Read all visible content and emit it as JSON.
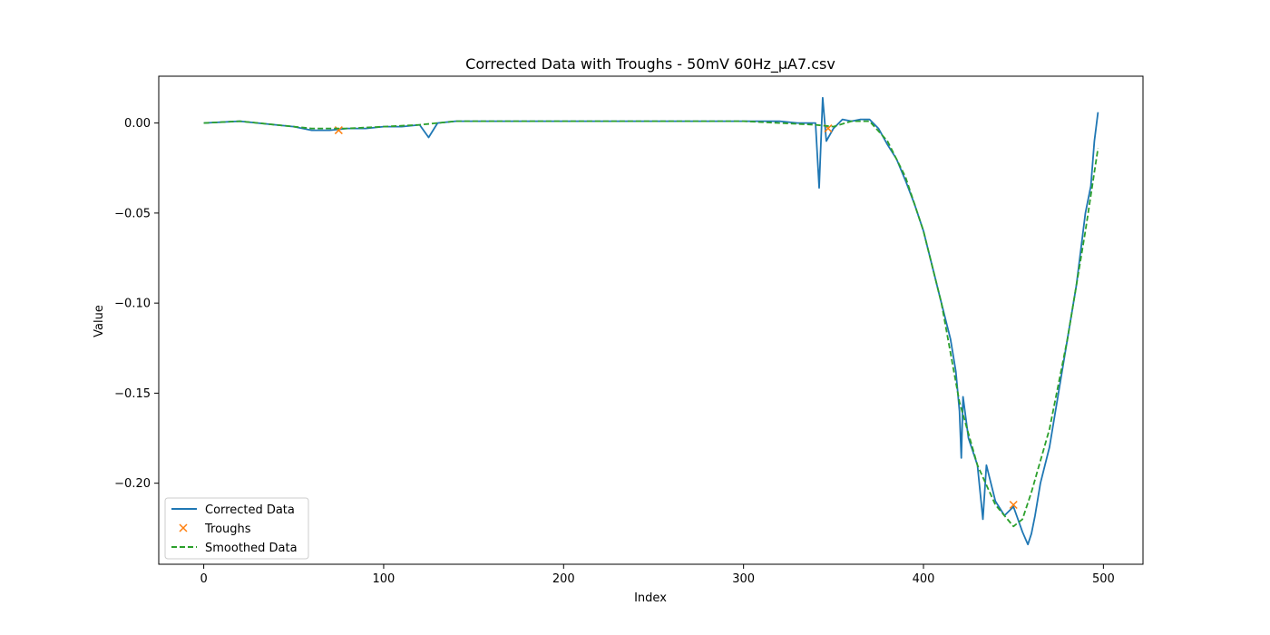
{
  "chart_data": {
    "type": "line",
    "title": "Corrected Data with Troughs - 50mV 60Hz_µA7.csv",
    "xlabel": "Index",
    "ylabel": "Value",
    "xlim": [
      -25,
      522
    ],
    "ylim": [
      -0.245,
      0.026
    ],
    "xticks": [
      0,
      100,
      200,
      300,
      400,
      500
    ],
    "yticks": [
      0.0,
      -0.05,
      -0.1,
      -0.15,
      -0.2
    ],
    "ytick_labels": [
      "0.00",
      "−0.05",
      "−0.10",
      "−0.15",
      "−0.20"
    ],
    "grid": false,
    "legend_position": "lower-left",
    "series": [
      {
        "name": "Corrected Data",
        "style": "solid",
        "color": "#1f77b4",
        "points": [
          [
            0,
            0.0
          ],
          [
            10,
            0.0005
          ],
          [
            20,
            0.001
          ],
          [
            30,
            0.0
          ],
          [
            40,
            -0.001
          ],
          [
            50,
            -0.002
          ],
          [
            60,
            -0.004
          ],
          [
            70,
            -0.004
          ],
          [
            80,
            -0.003
          ],
          [
            90,
            -0.003
          ],
          [
            100,
            -0.002
          ],
          [
            110,
            -0.002
          ],
          [
            120,
            -0.001
          ],
          [
            125,
            -0.008
          ],
          [
            130,
            0.0
          ],
          [
            140,
            0.001
          ],
          [
            150,
            0.001
          ],
          [
            160,
            0.001
          ],
          [
            170,
            0.001
          ],
          [
            180,
            0.001
          ],
          [
            190,
            0.001
          ],
          [
            200,
            0.001
          ],
          [
            210,
            0.001
          ],
          [
            220,
            0.001
          ],
          [
            230,
            0.001
          ],
          [
            240,
            0.001
          ],
          [
            250,
            0.001
          ],
          [
            260,
            0.001
          ],
          [
            270,
            0.001
          ],
          [
            280,
            0.001
          ],
          [
            290,
            0.001
          ],
          [
            300,
            0.001
          ],
          [
            310,
            0.001
          ],
          [
            320,
            0.001
          ],
          [
            330,
            0.0
          ],
          [
            340,
            0.0
          ],
          [
            342,
            -0.036
          ],
          [
            344,
            0.014
          ],
          [
            346,
            -0.01
          ],
          [
            350,
            -0.003
          ],
          [
            355,
            0.002
          ],
          [
            360,
            0.001
          ],
          [
            365,
            0.002
          ],
          [
            370,
            0.002
          ],
          [
            375,
            -0.003
          ],
          [
            380,
            -0.012
          ],
          [
            385,
            -0.02
          ],
          [
            390,
            -0.032
          ],
          [
            395,
            -0.045
          ],
          [
            400,
            -0.06
          ],
          [
            405,
            -0.08
          ],
          [
            410,
            -0.1
          ],
          [
            415,
            -0.12
          ],
          [
            418,
            -0.138
          ],
          [
            420,
            -0.16
          ],
          [
            421,
            -0.186
          ],
          [
            422,
            -0.152
          ],
          [
            425,
            -0.175
          ],
          [
            430,
            -0.19
          ],
          [
            433,
            -0.22
          ],
          [
            435,
            -0.19
          ],
          [
            440,
            -0.21
          ],
          [
            445,
            -0.218
          ],
          [
            450,
            -0.213
          ],
          [
            455,
            -0.227
          ],
          [
            458,
            -0.234
          ],
          [
            460,
            -0.228
          ],
          [
            462,
            -0.218
          ],
          [
            465,
            -0.2
          ],
          [
            470,
            -0.18
          ],
          [
            475,
            -0.15
          ],
          [
            480,
            -0.12
          ],
          [
            485,
            -0.09
          ],
          [
            490,
            -0.05
          ],
          [
            493,
            -0.035
          ],
          [
            495,
            -0.01
          ],
          [
            497,
            0.006
          ]
        ]
      },
      {
        "name": "Troughs",
        "style": "marker-x",
        "color": "#ff7f0e",
        "points": [
          [
            75,
            -0.004
          ],
          [
            347,
            -0.003
          ],
          [
            450,
            -0.212
          ]
        ]
      },
      {
        "name": "Smoothed Data",
        "style": "dashed",
        "color": "#2ca02c",
        "points": [
          [
            0,
            0.0
          ],
          [
            20,
            0.001
          ],
          [
            40,
            -0.001
          ],
          [
            60,
            -0.003
          ],
          [
            80,
            -0.003
          ],
          [
            100,
            -0.002
          ],
          [
            120,
            -0.001
          ],
          [
            140,
            0.001
          ],
          [
            200,
            0.001
          ],
          [
            300,
            0.001
          ],
          [
            320,
            0.0
          ],
          [
            340,
            -0.001
          ],
          [
            350,
            -0.002
          ],
          [
            360,
            0.001
          ],
          [
            370,
            0.001
          ],
          [
            380,
            -0.01
          ],
          [
            390,
            -0.03
          ],
          [
            400,
            -0.06
          ],
          [
            410,
            -0.1
          ],
          [
            420,
            -0.155
          ],
          [
            430,
            -0.19
          ],
          [
            440,
            -0.212
          ],
          [
            450,
            -0.224
          ],
          [
            455,
            -0.22
          ],
          [
            460,
            -0.205
          ],
          [
            470,
            -0.17
          ],
          [
            480,
            -0.12
          ],
          [
            490,
            -0.06
          ],
          [
            497,
            -0.014
          ]
        ]
      }
    ]
  }
}
